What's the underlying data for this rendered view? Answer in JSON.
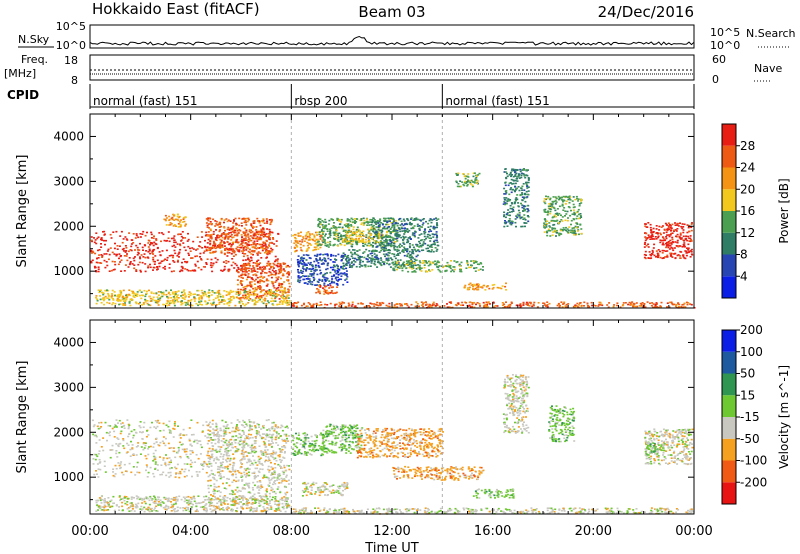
{
  "header": {
    "station": "Hokkaido East (fitACF)",
    "beam": "Beam 03",
    "date": "24/Dec/2016"
  },
  "noise_panel": {
    "left_label": "N.Sky",
    "left_ticks": [
      "10^5",
      "10^0"
    ],
    "right_ticks": [
      "10^5",
      "10^0"
    ],
    "right_label": "N.Search"
  },
  "freq_panel": {
    "left_label_1": "Freq.",
    "left_label_2": "[MHz]",
    "left_ticks": [
      "18",
      "8"
    ],
    "right_ticks": [
      "60",
      "0"
    ],
    "right_label": "Nave"
  },
  "cpid_panel": {
    "label": "CPID",
    "segments": [
      {
        "name": "normal (fast) 151",
        "start": 0,
        "end": 8
      },
      {
        "name": "rbsp 200",
        "start": 8,
        "end": 14
      },
      {
        "name": "normal (fast) 151",
        "start": 14,
        "end": 24
      }
    ]
  },
  "colors": {
    "power": [
      "#0a1ee6",
      "#2845b4",
      "#2e7d64",
      "#4aa050",
      "#f2c81e",
      "#f59314",
      "#ee5a14",
      "#e81e14"
    ],
    "velocity": [
      "#e81414",
      "#f05a14",
      "#f5a01e",
      "#c8c8c0",
      "#6ec832",
      "#2e9650",
      "#1e5aa0",
      "#0a1ee6"
    ]
  },
  "chart_data": [
    {
      "type": "heatmap",
      "name": "Power",
      "ylabel": "Slant Range [km]",
      "xlabel": "Time UT",
      "x_ticks": [
        "00:00",
        "04:00",
        "08:00",
        "12:00",
        "16:00",
        "20:00",
        "00:00"
      ],
      "xlim": [
        0,
        24
      ],
      "ylim": [
        180,
        4500
      ],
      "y_ticks": [
        1000,
        2000,
        3000,
        4000
      ],
      "colorbar": {
        "label": "Power [dB]",
        "ticks": [
          4,
          8,
          12,
          16,
          20,
          24,
          28
        ]
      },
      "regions": [
        {
          "t0": 0.0,
          "t1": 7.6,
          "r0": 1000,
          "r1": 1900,
          "level": 7
        },
        {
          "t0": 4.6,
          "t1": 7.2,
          "r0": 1400,
          "r1": 2200,
          "level": 6
        },
        {
          "t0": 5.8,
          "t1": 7.9,
          "r0": 400,
          "r1": 1200,
          "level": 6
        },
        {
          "t0": 2.9,
          "t1": 3.8,
          "r0": 2000,
          "r1": 2300,
          "level": 5
        },
        {
          "t0": 0.2,
          "t1": 7.9,
          "r0": 250,
          "r1": 600,
          "level": 4
        },
        {
          "t0": 8.0,
          "t1": 9.2,
          "r0": 1450,
          "r1": 1900,
          "level": 5
        },
        {
          "t0": 9.0,
          "t1": 12.2,
          "r0": 1550,
          "r1": 2200,
          "level": 3
        },
        {
          "t0": 10.0,
          "t1": 11.8,
          "r0": 1650,
          "r1": 1950,
          "level": 4
        },
        {
          "t0": 11.2,
          "t1": 13.8,
          "r0": 1450,
          "r1": 2200,
          "level": 2
        },
        {
          "t0": 8.2,
          "t1": 10.2,
          "r0": 700,
          "r1": 1400,
          "level": 1
        },
        {
          "t0": 10.0,
          "t1": 13.0,
          "r0": 1100,
          "r1": 1500,
          "level": 2
        },
        {
          "t0": 12.0,
          "t1": 15.6,
          "r0": 1000,
          "r1": 1250,
          "level": 3
        },
        {
          "t0": 8.8,
          "t1": 9.8,
          "r0": 500,
          "r1": 700,
          "level": 6
        },
        {
          "t0": 14.8,
          "t1": 16.6,
          "r0": 600,
          "r1": 750,
          "level": 5
        },
        {
          "t0": 8.0,
          "t1": 24.0,
          "r0": 200,
          "r1": 330,
          "level": 6
        },
        {
          "t0": 22.0,
          "t1": 23.9,
          "r0": 1300,
          "r1": 2100,
          "level": 7
        },
        {
          "t0": 14.5,
          "t1": 15.5,
          "r0": 2900,
          "r1": 3200,
          "level": 3
        },
        {
          "t0": 16.4,
          "t1": 17.4,
          "r0": 2000,
          "r1": 3300,
          "level": 2
        },
        {
          "t0": 18.0,
          "t1": 19.5,
          "r0": 1800,
          "r1": 2700,
          "level": 3
        }
      ]
    },
    {
      "type": "heatmap",
      "name": "Velocity",
      "ylabel": "Slant Range [km]",
      "xlabel": "Time UT",
      "x_ticks": [
        "00:00",
        "04:00",
        "08:00",
        "12:00",
        "16:00",
        "20:00",
        "00:00"
      ],
      "xlim": [
        0,
        24
      ],
      "ylim": [
        180,
        4500
      ],
      "y_ticks": [
        1000,
        2000,
        3000,
        4000
      ],
      "colorbar": {
        "label": "Velocity [m s^-1]",
        "ticks": [
          -200,
          -100,
          -50,
          -15,
          15,
          50,
          100,
          200
        ]
      },
      "regions": [
        {
          "t0": 0.0,
          "t1": 7.6,
          "r0": 1000,
          "r1": 2300,
          "level": 3
        },
        {
          "t0": 4.6,
          "t1": 7.9,
          "r0": 400,
          "r1": 2200,
          "level": 3
        },
        {
          "t0": 0.2,
          "t1": 7.9,
          "r0": 250,
          "r1": 600,
          "level": 3
        },
        {
          "t0": 8.0,
          "t1": 9.4,
          "r0": 1500,
          "r1": 2000,
          "level": 4
        },
        {
          "t0": 9.2,
          "t1": 10.8,
          "r0": 1550,
          "r1": 2200,
          "level": 4
        },
        {
          "t0": 10.6,
          "t1": 14.0,
          "r0": 1450,
          "r1": 2100,
          "level": 2
        },
        {
          "t0": 12.0,
          "t1": 15.6,
          "r0": 950,
          "r1": 1250,
          "level": 2
        },
        {
          "t0": 8.4,
          "t1": 10.2,
          "r0": 600,
          "r1": 900,
          "level": 3
        },
        {
          "t0": 15.2,
          "t1": 16.8,
          "r0": 550,
          "r1": 750,
          "level": 4
        },
        {
          "t0": 8.0,
          "t1": 24.0,
          "r0": 200,
          "r1": 330,
          "level": 3
        },
        {
          "t0": 22.0,
          "t1": 23.9,
          "r0": 1300,
          "r1": 2100,
          "level": 3
        },
        {
          "t0": 22.0,
          "t1": 22.8,
          "r0": 1500,
          "r1": 1800,
          "level": 4
        },
        {
          "t0": 16.4,
          "t1": 17.4,
          "r0": 2000,
          "r1": 3300,
          "level": 3
        },
        {
          "t0": 18.2,
          "t1": 19.2,
          "r0": 1800,
          "r1": 2600,
          "level": 4
        }
      ]
    }
  ]
}
